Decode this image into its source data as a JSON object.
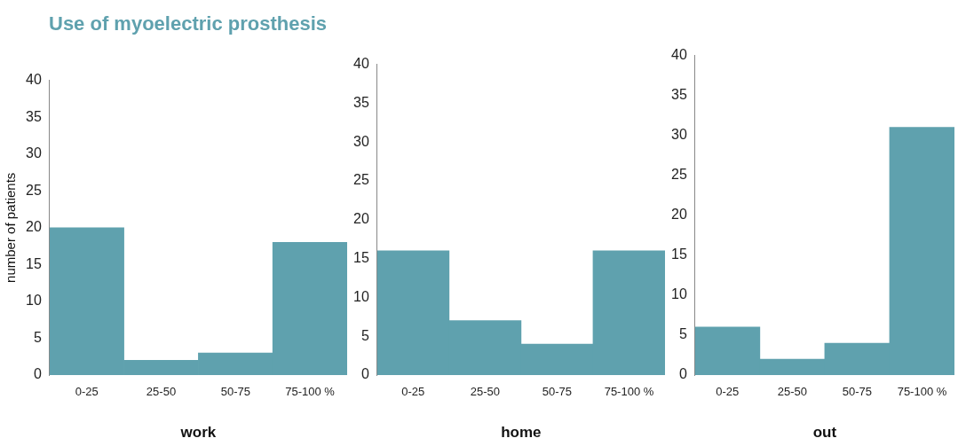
{
  "chart_data": [
    {
      "type": "bar",
      "title": "Use of myoelectric prosthesis",
      "categories": [
        "0-25",
        "25-50",
        "50-75",
        "75-100 %"
      ],
      "values": [
        20,
        2,
        3,
        18
      ],
      "color": "#5fa1ae",
      "xlabel": "work",
      "ylabel": "number of patients",
      "ylim": [
        0,
        40
      ],
      "yticks": [
        0,
        5,
        10,
        15,
        20,
        25,
        30,
        35,
        40
      ],
      "grid": false
    },
    {
      "type": "bar",
      "categories": [
        "0-25",
        "25-50",
        "50-75",
        "75-100 %"
      ],
      "values": [
        16,
        7,
        4,
        16
      ],
      "color": "#5fa1ae",
      "xlabel": "home",
      "ylim": [
        0,
        40
      ],
      "yticks": [
        0,
        5,
        10,
        15,
        20,
        25,
        30,
        35,
        40
      ],
      "grid": false
    },
    {
      "type": "bar",
      "categories": [
        "0-25",
        "25-50",
        "50-75",
        "75-100 %"
      ],
      "values": [
        6,
        2,
        4,
        31
      ],
      "color": "#5fa1ae",
      "xlabel": "out",
      "ylim": [
        0,
        40
      ],
      "yticks": [
        0,
        5,
        10,
        15,
        20,
        25,
        30,
        35,
        40
      ],
      "grid": false
    }
  ]
}
